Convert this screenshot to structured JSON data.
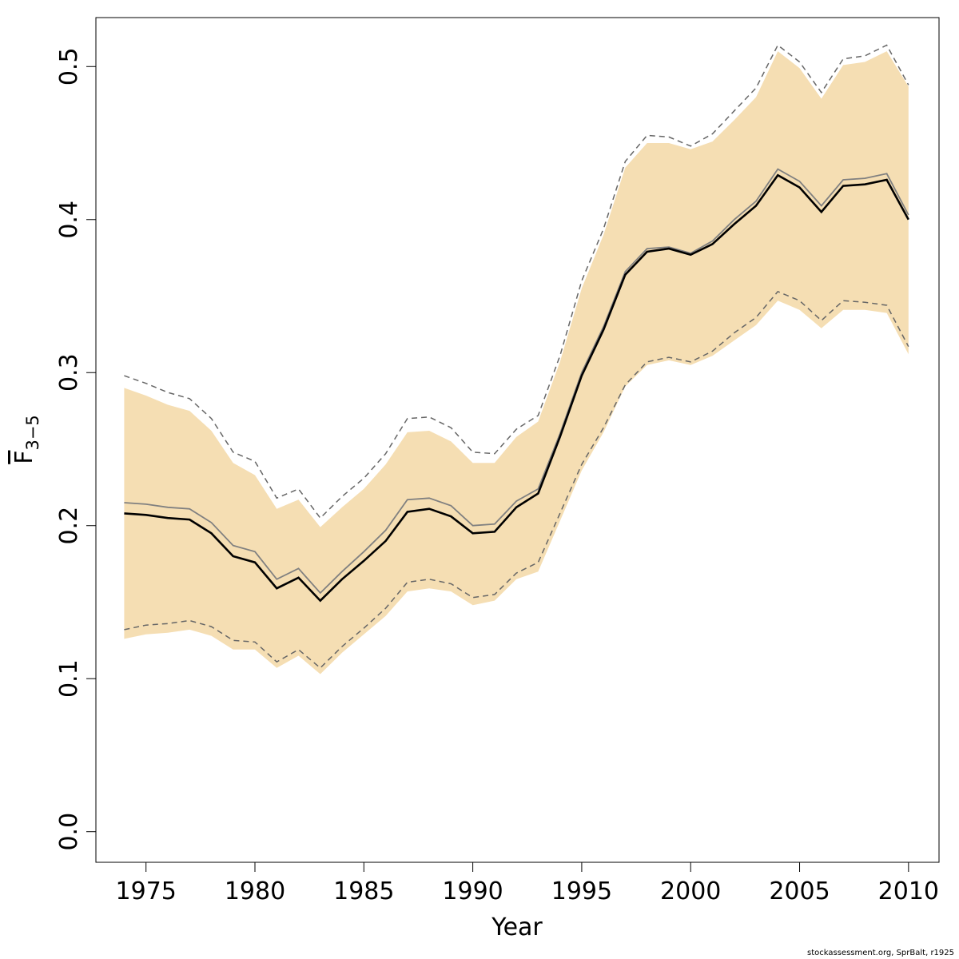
{
  "chart_data": {
    "type": "line",
    "title": "",
    "xlabel": "Year",
    "ylabel": {
      "base": "F",
      "subscript": "3−5",
      "overline": true
    },
    "x": [
      1974,
      1975,
      1976,
      1977,
      1978,
      1979,
      1980,
      1981,
      1982,
      1983,
      1984,
      1985,
      1986,
      1987,
      1988,
      1989,
      1990,
      1991,
      1992,
      1993,
      1994,
      1995,
      1996,
      1997,
      1998,
      1999,
      2000,
      2001,
      2002,
      2003,
      2004,
      2005,
      2006,
      2007,
      2008,
      2009,
      2010
    ],
    "xlim": [
      1972.7,
      2011.4
    ],
    "ylim": [
      -0.02,
      0.532
    ],
    "x_ticks": [
      1975,
      1980,
      1985,
      1990,
      1995,
      2000,
      2005,
      2010
    ],
    "x_tick_labels": [
      "1975",
      "1980",
      "1985",
      "1990",
      "1995",
      "2000",
      "2005",
      "2010"
    ],
    "y_ticks": [
      0.0,
      0.1,
      0.2,
      0.3,
      0.4,
      0.5
    ],
    "y_tick_labels": [
      "0.0",
      "0.1",
      "0.2",
      "0.3",
      "0.4",
      "0.5"
    ],
    "grid": false,
    "series": [
      {
        "name": "ci_band",
        "kind": "band",
        "color": "#F5DEB3",
        "lower": [
          0.126,
          0.129,
          0.13,
          0.132,
          0.128,
          0.119,
          0.119,
          0.107,
          0.115,
          0.103,
          0.117,
          0.129,
          0.141,
          0.157,
          0.159,
          0.157,
          0.148,
          0.151,
          0.165,
          0.17,
          0.203,
          0.236,
          0.261,
          0.291,
          0.305,
          0.308,
          0.305,
          0.311,
          0.321,
          0.331,
          0.347,
          0.341,
          0.329,
          0.341,
          0.341,
          0.339,
          0.312
        ],
        "upper": [
          0.29,
          0.285,
          0.279,
          0.275,
          0.262,
          0.241,
          0.233,
          0.211,
          0.217,
          0.199,
          0.212,
          0.224,
          0.24,
          0.261,
          0.262,
          0.255,
          0.241,
          0.241,
          0.258,
          0.268,
          0.307,
          0.355,
          0.39,
          0.434,
          0.45,
          0.45,
          0.446,
          0.451,
          0.465,
          0.48,
          0.51,
          0.499,
          0.479,
          0.501,
          0.503,
          0.51,
          0.487
        ]
      },
      {
        "name": "estimate",
        "kind": "line",
        "color": "#000000",
        "values": [
          0.208,
          0.207,
          0.205,
          0.204,
          0.195,
          0.18,
          0.176,
          0.159,
          0.166,
          0.151,
          0.165,
          0.177,
          0.19,
          0.209,
          0.211,
          0.206,
          0.195,
          0.196,
          0.212,
          0.221,
          0.258,
          0.298,
          0.328,
          0.364,
          0.379,
          0.381,
          0.377,
          0.384,
          0.397,
          0.409,
          0.429,
          0.421,
          0.405,
          0.422,
          0.423,
          0.426,
          0.4
        ]
      },
      {
        "name": "alt_estimate",
        "kind": "line",
        "color": "#808080",
        "values": [
          0.215,
          0.214,
          0.212,
          0.211,
          0.202,
          0.187,
          0.183,
          0.165,
          0.172,
          0.156,
          0.17,
          0.183,
          0.197,
          0.217,
          0.218,
          0.213,
          0.2,
          0.201,
          0.216,
          0.224,
          0.26,
          0.3,
          0.33,
          0.366,
          0.381,
          0.382,
          0.378,
          0.386,
          0.4,
          0.412,
          0.433,
          0.425,
          0.409,
          0.426,
          0.427,
          0.43,
          0.403
        ]
      },
      {
        "name": "alt_ci_upper",
        "kind": "dashed",
        "color": "#666666",
        "values": [
          0.298,
          0.293,
          0.287,
          0.283,
          0.27,
          0.248,
          0.242,
          0.218,
          0.224,
          0.205,
          0.219,
          0.231,
          0.247,
          0.27,
          0.271,
          0.264,
          0.248,
          0.247,
          0.263,
          0.272,
          0.311,
          0.36,
          0.394,
          0.438,
          0.455,
          0.454,
          0.448,
          0.456,
          0.471,
          0.486,
          0.514,
          0.503,
          0.483,
          0.505,
          0.507,
          0.514,
          0.488
        ]
      },
      {
        "name": "alt_ci_lower",
        "kind": "dashed",
        "color": "#666666",
        "values": [
          0.132,
          0.135,
          0.136,
          0.138,
          0.134,
          0.125,
          0.124,
          0.111,
          0.119,
          0.107,
          0.121,
          0.133,
          0.146,
          0.163,
          0.165,
          0.162,
          0.153,
          0.155,
          0.169,
          0.176,
          0.208,
          0.24,
          0.264,
          0.292,
          0.307,
          0.31,
          0.307,
          0.314,
          0.326,
          0.336,
          0.353,
          0.347,
          0.334,
          0.347,
          0.346,
          0.344,
          0.317
        ]
      }
    ]
  },
  "footer": {
    "credit": "stockassessment.org, SprBalt, r1925"
  }
}
